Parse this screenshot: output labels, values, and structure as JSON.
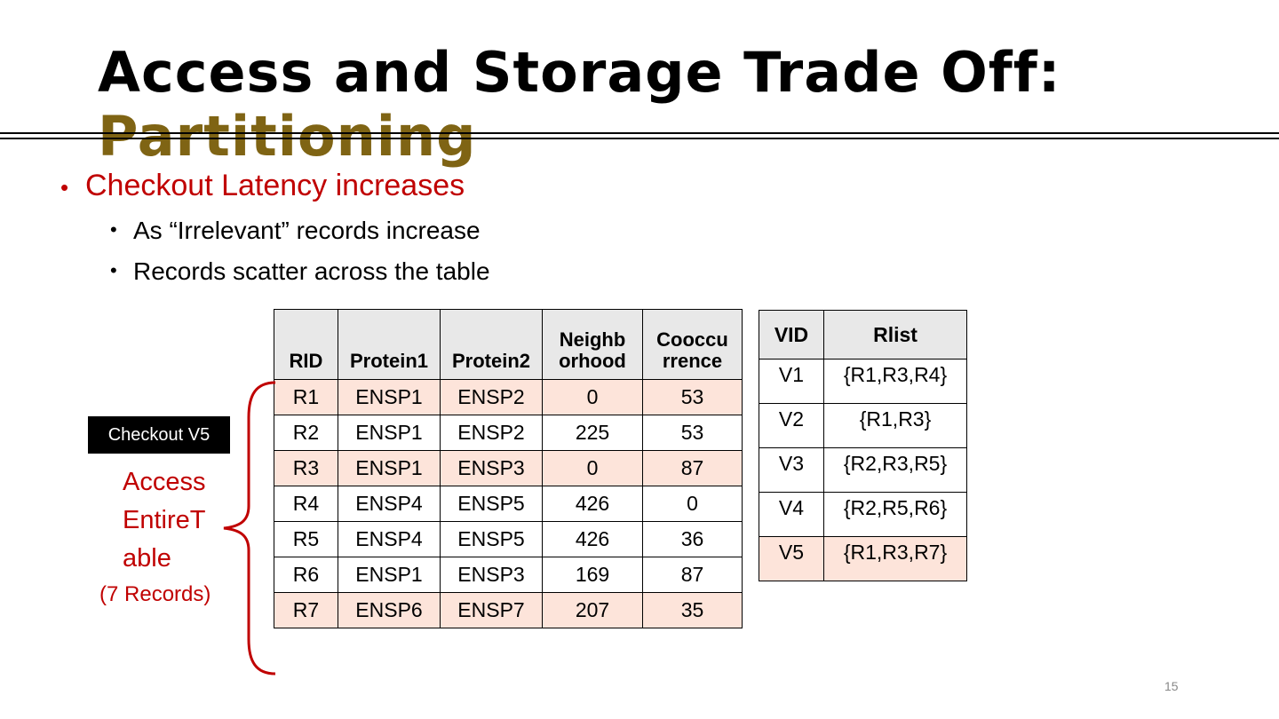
{
  "title": {
    "main": "Access and Storage Trade Off: ",
    "accent": "Partitioning"
  },
  "bullets": {
    "level1": "Checkout Latency increases",
    "level2": [
      "As “Irrelevant” records increase",
      "Records scatter across the table"
    ]
  },
  "main_table": {
    "headers": [
      [
        "RID"
      ],
      [
        "Protein1"
      ],
      [
        "Protein2"
      ],
      [
        "Neighb",
        "orhood"
      ],
      [
        "Cooccu",
        "rrence"
      ]
    ],
    "rows": [
      [
        "R1",
        "ENSP1",
        "ENSP2",
        "0",
        "53"
      ],
      [
        "R2",
        "ENSP1",
        "ENSP2",
        "225",
        "53"
      ],
      [
        "R3",
        "ENSP1",
        "ENSP3",
        "0",
        "87"
      ],
      [
        "R4",
        "ENSP4",
        "ENSP5",
        "426",
        "0"
      ],
      [
        "R5",
        "ENSP4",
        "ENSP5",
        "426",
        "36"
      ],
      [
        "R6",
        "ENSP1",
        "ENSP3",
        "169",
        "87"
      ],
      [
        "R7",
        "ENSP6",
        "ENSP7",
        "207",
        "35"
      ]
    ]
  },
  "vid_table": {
    "headers": [
      "VID",
      "Rlist"
    ],
    "rows": [
      [
        "V1",
        "{R1,R3,R4}"
      ],
      [
        "V2",
        "{R1,R3}"
      ],
      [
        "V3",
        "{R2,R3,R5}"
      ],
      [
        "V4",
        "{R2,R5,R6}"
      ],
      [
        "V5",
        "{R1,R3,R7}"
      ]
    ]
  },
  "checkout_label": "Checkout V5",
  "access_lines": [
    "Access",
    "EntireT",
    "able"
  ],
  "records_label": "(7 Records)",
  "page_number": "15",
  "colors": {
    "accent": "#7f6414",
    "red": "#c00000",
    "highlight": "#fde4da",
    "header_bg": "#e8e8e8"
  }
}
